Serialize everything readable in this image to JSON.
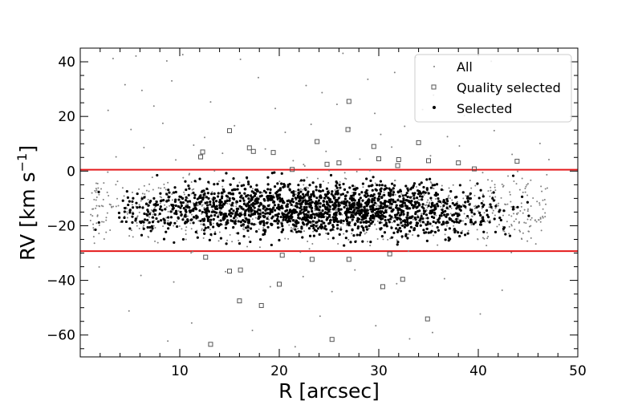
{
  "chart_data": {
    "type": "scatter",
    "xlabel": "R [arcsec]",
    "ylabel": "RV [km s",
    "ylabel_exp": "−1",
    "ylabel_close": "]",
    "xlim": [
      0,
      50
    ],
    "ylim": [
      -68,
      45
    ],
    "xticks": [
      10,
      20,
      30,
      40,
      50
    ],
    "xtick_labels": [
      "10",
      "20",
      "30",
      "40",
      "50"
    ],
    "yticks": [
      40,
      20,
      0,
      -20,
      -40,
      -60
    ],
    "ytick_labels": [
      "40",
      "20",
      "0",
      "−20",
      "−40",
      "−60"
    ],
    "hlines": [
      {
        "y": 0.5,
        "color": "#e41a1c"
      },
      {
        "y": -29.3,
        "color": "#e41a1c"
      }
    ],
    "legend_position": "top-right",
    "colors": {
      "all": "#808080",
      "quality": "#555555",
      "selected": "#000000",
      "lines": "#e41a1c"
    },
    "series": [
      {
        "name": "All",
        "marker": "dot-small",
        "points": [
          [
            3.3,
            41.2
          ],
          [
            5.6,
            42.1
          ],
          [
            8.7,
            40.3
          ],
          [
            10.3,
            42.6
          ],
          [
            16.1,
            40.9
          ],
          [
            26.4,
            43.1
          ],
          [
            33.7,
            41.6
          ],
          [
            41.3,
            40.2
          ],
          [
            4.5,
            31.6
          ],
          [
            6.2,
            29.5
          ],
          [
            9.2,
            33.0
          ],
          [
            17.9,
            34.2
          ],
          [
            22.7,
            31.3
          ],
          [
            24.3,
            28.7
          ],
          [
            28.9,
            33.6
          ],
          [
            31.6,
            36.1
          ],
          [
            35.5,
            27.8
          ],
          [
            39.2,
            30.1
          ],
          [
            44.1,
            32.3
          ],
          [
            2.8,
            22.2
          ],
          [
            7.4,
            23.8
          ],
          [
            13.1,
            25.3
          ],
          [
            19.6,
            22.9
          ],
          [
            25.8,
            24.4
          ],
          [
            29.6,
            21.1
          ],
          [
            34.4,
            22.5
          ],
          [
            38.6,
            20.3
          ],
          [
            42.3,
            23.1
          ],
          [
            5.1,
            15.2
          ],
          [
            8.3,
            17.5
          ],
          [
            12.5,
            12.3
          ],
          [
            15.5,
            16.6
          ],
          [
            20.6,
            14.2
          ],
          [
            23.2,
            17.1
          ],
          [
            27.1,
            15.8
          ],
          [
            30.2,
            13.4
          ],
          [
            32.6,
            16.4
          ],
          [
            36.9,
            12.6
          ],
          [
            41.6,
            14.8
          ],
          [
            46.2,
            10.1
          ],
          [
            3.6,
            5.2
          ],
          [
            6.4,
            8.6
          ],
          [
            9.6,
            4.1
          ],
          [
            11.4,
            9.5
          ],
          [
            14.3,
            6.5
          ],
          [
            18.6,
            8.1
          ],
          [
            21.4,
            3.8
          ],
          [
            24.7,
            7.2
          ],
          [
            28.1,
            4.4
          ],
          [
            31.3,
            8.8
          ],
          [
            35.2,
            5.6
          ],
          [
            38.1,
            9.2
          ],
          [
            43.4,
            6.1
          ],
          [
            47.1,
            4.2
          ],
          [
            2.1,
            -6.5
          ],
          [
            4.4,
            -9.1
          ],
          [
            6.9,
            -7.4
          ],
          [
            9.1,
            -12.2
          ],
          [
            11.6,
            -8.6
          ],
          [
            13.9,
            -15.3
          ],
          [
            16.4,
            -10.4
          ],
          [
            18.9,
            -13.8
          ],
          [
            21.2,
            -11.1
          ],
          [
            23.6,
            -16.4
          ],
          [
            26.1,
            -9.5
          ],
          [
            28.6,
            -14.1
          ],
          [
            31.1,
            -12.6
          ],
          [
            33.6,
            -17.1
          ],
          [
            36.1,
            -10.8
          ],
          [
            38.6,
            -15.6
          ],
          [
            41.1,
            -13.2
          ],
          [
            43.6,
            -18.4
          ],
          [
            2.6,
            -22.4
          ],
          [
            5.3,
            -24.1
          ],
          [
            7.8,
            -26.2
          ],
          [
            10.6,
            -21.7
          ],
          [
            13.2,
            -23.6
          ],
          [
            15.9,
            -25.4
          ],
          [
            18.4,
            -20.8
          ],
          [
            20.9,
            -24.8
          ],
          [
            23.4,
            -22.1
          ],
          [
            25.9,
            -26.6
          ],
          [
            28.4,
            -21.3
          ],
          [
            30.9,
            -25.1
          ],
          [
            33.4,
            -23.4
          ],
          [
            35.9,
            -27.1
          ],
          [
            38.4,
            -21.9
          ],
          [
            40.9,
            -24.6
          ],
          [
            1.9,
            -35.1
          ],
          [
            6.1,
            -38.2
          ],
          [
            9.4,
            -40.6
          ],
          [
            14.6,
            -36.8
          ],
          [
            19.1,
            -42.3
          ],
          [
            22.4,
            -38.6
          ],
          [
            25.3,
            -44.1
          ],
          [
            27.6,
            -36.2
          ],
          [
            31.8,
            -41.2
          ],
          [
            36.6,
            -39.4
          ],
          [
            42.4,
            -43.6
          ],
          [
            4.9,
            -51.2
          ],
          [
            11.2,
            -55.6
          ],
          [
            17.3,
            -58.3
          ],
          [
            24.1,
            -53.1
          ],
          [
            29.7,
            -56.6
          ],
          [
            35.4,
            -59.1
          ],
          [
            40.2,
            -52.3
          ],
          [
            8.8,
            -62.2
          ],
          [
            21.6,
            -64.3
          ],
          [
            33.1,
            -61.4
          ]
        ]
      },
      {
        "name": "Quality selected",
        "marker": "open-square",
        "points": [
          [
            27.0,
            25.5
          ],
          [
            15.0,
            14.8
          ],
          [
            26.9,
            15.2
          ],
          [
            23.8,
            10.8
          ],
          [
            34.0,
            10.4
          ],
          [
            12.3,
            7.0
          ],
          [
            17.0,
            8.5
          ],
          [
            17.4,
            7.2
          ],
          [
            19.4,
            6.8
          ],
          [
            29.5,
            9.0
          ],
          [
            12.1,
            5.2
          ],
          [
            30.0,
            4.5
          ],
          [
            32.0,
            4.2
          ],
          [
            35.0,
            3.8
          ],
          [
            38.0,
            3.0
          ],
          [
            43.9,
            3.6
          ],
          [
            26.0,
            3.0
          ],
          [
            24.8,
            2.5
          ],
          [
            31.9,
            2.0
          ],
          [
            39.6,
            0.8
          ],
          [
            21.3,
            0.6
          ],
          [
            12.6,
            -31.5
          ],
          [
            15.0,
            -36.6
          ],
          [
            16.1,
            -36.2
          ],
          [
            16.0,
            -47.5
          ],
          [
            18.2,
            -49.2
          ],
          [
            20.0,
            -41.4
          ],
          [
            20.3,
            -30.8
          ],
          [
            23.3,
            -32.3
          ],
          [
            27.0,
            -32.3
          ],
          [
            30.4,
            -42.3
          ],
          [
            31.1,
            -30.3
          ],
          [
            32.4,
            -39.6
          ],
          [
            34.9,
            -54.1
          ],
          [
            25.3,
            -61.6
          ],
          [
            13.1,
            -63.4
          ]
        ]
      },
      {
        "name": "Selected",
        "marker": "dot",
        "clusters": [
          {
            "x": 2.5,
            "y": -15.0,
            "n": 3
          },
          {
            "x": 5.0,
            "y": -15.5,
            "n": 33
          },
          {
            "x": 7.5,
            "y": -14.5,
            "n": 55
          },
          {
            "x": 10.0,
            "y": -14.0,
            "n": 80
          },
          {
            "x": 12.5,
            "y": -13.5,
            "n": 101
          },
          {
            "x": 15.0,
            "y": -13.5,
            "n": 122
          },
          {
            "x": 17.5,
            "y": -13.0,
            "n": 141
          },
          {
            "x": 20.0,
            "y": -13.5,
            "n": 156
          },
          {
            "x": 22.5,
            "y": -14.0,
            "n": 168
          },
          {
            "x": 25.0,
            "y": -14.0,
            "n": 175
          },
          {
            "x": 27.5,
            "y": -14.0,
            "n": 172
          },
          {
            "x": 30.0,
            "y": -13.5,
            "n": 158
          },
          {
            "x": 32.5,
            "y": -13.5,
            "n": 136
          },
          {
            "x": 35.0,
            "y": -14.0,
            "n": 108
          },
          {
            "x": 37.5,
            "y": -14.5,
            "n": 76
          },
          {
            "x": 40.0,
            "y": -15.0,
            "n": 44
          },
          {
            "x": 42.5,
            "y": -13.5,
            "n": 19
          },
          {
            "x": 45.0,
            "y": -12.0,
            "n": 4
          }
        ],
        "y_range": [
          -29.0,
          0.0
        ],
        "x_range": [
          0.8,
          45.5
        ]
      }
    ]
  }
}
